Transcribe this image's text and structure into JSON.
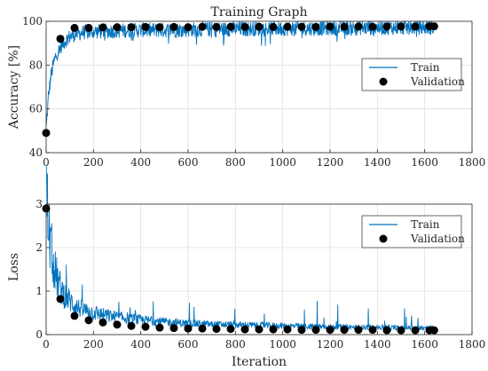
{
  "figure": {
    "title": "Training Graph",
    "xlabel": "Iteration",
    "train_color": "#0072BD",
    "validation_color": "#000000",
    "grid_color": "#dfdfdf",
    "axis_color": "#262626"
  },
  "chart_data": [
    {
      "type": "line",
      "title": "Training Graph",
      "xlabel": "",
      "ylabel": "Accuracy [%]",
      "xlim": [
        0,
        1800
      ],
      "ylim": [
        40,
        100
      ],
      "xticks": [
        0,
        200,
        400,
        600,
        800,
        1000,
        1200,
        1400,
        1600,
        1800
      ],
      "yticks": [
        40,
        60,
        80,
        100
      ],
      "grid": true,
      "legend_position": "right",
      "series": [
        {
          "name": "Train",
          "style": "line",
          "x": [
            1,
            10,
            20,
            30,
            40,
            50,
            60,
            70,
            80,
            90,
            100,
            120,
            140,
            160,
            180,
            200,
            250,
            300,
            350,
            400,
            450,
            500,
            600,
            700,
            800,
            900,
            1000,
            1100,
            1200,
            1300,
            1400,
            1500,
            1600,
            1640
          ],
          "y": [
            52,
            66,
            75,
            80,
            84,
            86,
            88,
            90,
            91,
            92,
            93,
            94,
            94.5,
            95,
            95,
            95.3,
            95.5,
            95.7,
            95.8,
            96,
            96,
            96,
            96.2,
            96.4,
            96.5,
            96.6,
            96.7,
            96.8,
            96.9,
            97,
            97.1,
            97.2,
            97.3,
            97.3
          ],
          "noise": 3.5
        },
        {
          "name": "Validation",
          "style": "markers",
          "x": [
            0,
            60,
            120,
            180,
            240,
            300,
            360,
            420,
            480,
            540,
            600,
            660,
            720,
            780,
            840,
            900,
            960,
            1020,
            1080,
            1140,
            1200,
            1260,
            1320,
            1380,
            1440,
            1500,
            1560,
            1620,
            1640
          ],
          "y": [
            49,
            92,
            97,
            97,
            97.2,
            97.3,
            97.3,
            97.4,
            97.3,
            97.4,
            97.3,
            97.5,
            97.4,
            97.5,
            97.4,
            97.5,
            97.4,
            97.5,
            97.5,
            97.4,
            97.6,
            97.5,
            97.6,
            97.5,
            97.6,
            97.6,
            97.6,
            97.7,
            97.7
          ]
        }
      ]
    },
    {
      "type": "line",
      "title": "",
      "xlabel": "Iteration",
      "ylabel": "Loss",
      "xlim": [
        0,
        1800
      ],
      "ylim": [
        0,
        3
      ],
      "xticks": [
        0,
        200,
        400,
        600,
        800,
        1000,
        1200,
        1400,
        1600,
        1800
      ],
      "yticks": [
        0,
        1,
        2,
        3
      ],
      "grid": true,
      "legend_position": "top-right",
      "series": [
        {
          "name": "Train",
          "style": "line",
          "x": [
            1,
            5,
            10,
            20,
            30,
            40,
            50,
            60,
            80,
            100,
            120,
            150,
            200,
            250,
            300,
            400,
            500,
            600,
            700,
            800,
            900,
            1000,
            1100,
            1200,
            1300,
            1400,
            1500,
            1600,
            1640
          ],
          "y": [
            2.9,
            2.6,
            2.2,
            1.8,
            1.5,
            1.25,
            1.1,
            0.95,
            0.8,
            0.7,
            0.6,
            0.52,
            0.45,
            0.4,
            0.36,
            0.3,
            0.26,
            0.23,
            0.21,
            0.2,
            0.19,
            0.18,
            0.17,
            0.16,
            0.15,
            0.15,
            0.14,
            0.14,
            0.14
          ],
          "noise": 0.35
        },
        {
          "name": "Validation",
          "style": "markers",
          "x": [
            0,
            60,
            120,
            180,
            240,
            300,
            360,
            420,
            480,
            540,
            600,
            660,
            720,
            780,
            840,
            900,
            960,
            1020,
            1080,
            1140,
            1200,
            1260,
            1320,
            1380,
            1440,
            1500,
            1560,
            1620,
            1640
          ],
          "y": [
            2.9,
            0.82,
            0.43,
            0.33,
            0.28,
            0.23,
            0.2,
            0.18,
            0.16,
            0.15,
            0.14,
            0.14,
            0.13,
            0.13,
            0.12,
            0.12,
            0.12,
            0.12,
            0.11,
            0.11,
            0.11,
            0.11,
            0.11,
            0.11,
            0.1,
            0.1,
            0.1,
            0.1,
            0.1
          ]
        }
      ]
    }
  ]
}
